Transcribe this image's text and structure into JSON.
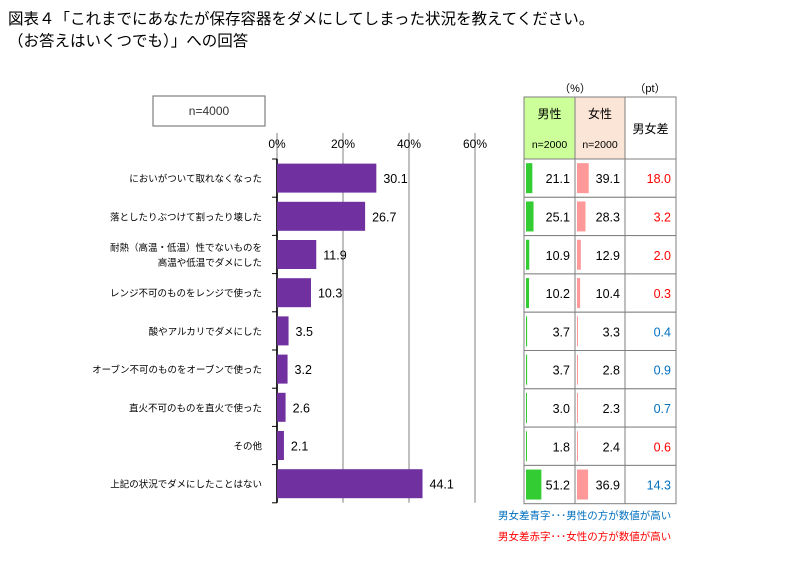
{
  "title": {
    "line1": "図表４「これまでにあなたが保存容器をダメにしてしまった状況を教えてください。",
    "line2": "（お答えはいくつでも）」への回答"
  },
  "sample_label": "n=4000",
  "table_headers": {
    "percent_unit": "（%）",
    "pt_unit": "（pt）",
    "male": "男性",
    "male_n": "n=2000",
    "female": "女性",
    "female_n": "n=2000",
    "diff": "男女差"
  },
  "notes": {
    "blue": "男女差青字･･･男性の方が数値が高い",
    "red": "男女差赤字･･･女性の方が数値が高い"
  },
  "colors": {
    "bar": "#7030a0",
    "male_bar": "#33cc33",
    "female_bar": "#ff9999",
    "male_header_bg": "#ccff99",
    "female_header_bg": "#fbe5d6",
    "blue_text": "#0070c0",
    "red_text": "#ff0000"
  },
  "chart_data": {
    "type": "bar",
    "orientation": "horizontal",
    "categories": [
      [
        "においがついて取れなくなった"
      ],
      [
        "落としたりぶつけて割ったり壊した"
      ],
      [
        "耐熱（高温・低温）性でないものを",
        "高温や低温でダメにした"
      ],
      [
        "レンジ不可のものをレンジで使った"
      ],
      [
        "酸やアルカリでダメにした"
      ],
      [
        "オーブン不可のものをオーブンで使った"
      ],
      [
        "直火不可のものを直火で使った"
      ],
      [
        "その他"
      ],
      [
        "上記の状況でダメにしたことはない"
      ]
    ],
    "values": [
      30.1,
      26.7,
      11.9,
      10.3,
      3.5,
      3.2,
      2.6,
      2.1,
      44.1
    ],
    "value_labels": [
      "30.1",
      "26.7",
      "11.9",
      "10.3",
      "3.5",
      "3.2",
      "2.6",
      "2.1",
      "44.1"
    ],
    "xlim": [
      0,
      60
    ],
    "xticks": [
      "0%",
      "20%",
      "40%",
      "60%"
    ],
    "xtick_values": [
      0,
      20,
      40,
      60
    ],
    "grid": true,
    "male_values": [
      "21.1",
      "25.1",
      "10.9",
      "10.2",
      "3.7",
      "3.7",
      "3.0",
      "1.8",
      "51.2"
    ],
    "female_values": [
      "39.1",
      "28.3",
      "12.9",
      "10.4",
      "3.3",
      "2.8",
      "2.3",
      "2.4",
      "36.9"
    ],
    "diff_values": [
      "18.0",
      "3.2",
      "2.0",
      "0.3",
      "0.4",
      "0.9",
      "0.7",
      "0.6",
      "14.3"
    ],
    "diff_sign": [
      "female",
      "female",
      "female",
      "female",
      "male",
      "male",
      "male",
      "female",
      "male"
    ]
  }
}
